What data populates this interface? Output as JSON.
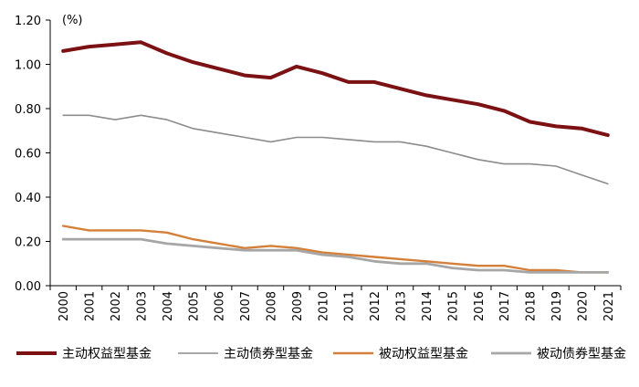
{
  "chart_data": {
    "type": "line",
    "unit": "(%)",
    "categories": [
      "2000",
      "2001",
      "2002",
      "2003",
      "2004",
      "2005",
      "2006",
      "2007",
      "2008",
      "2009",
      "2010",
      "2011",
      "2012",
      "2013",
      "2014",
      "2015",
      "2016",
      "2017",
      "2018",
      "2019",
      "2020",
      "2021"
    ],
    "ylim": [
      0,
      1.2
    ],
    "yticks": [
      "0.00",
      "0.20",
      "0.40",
      "0.60",
      "0.80",
      "1.00",
      "1.20"
    ],
    "grid": false,
    "legend_position": "bottom",
    "series": [
      {
        "name": "主动权益型基金",
        "color": "#7B1113",
        "width": 4,
        "values": [
          1.06,
          1.08,
          1.09,
          1.1,
          1.05,
          1.01,
          0.98,
          0.95,
          0.94,
          0.99,
          0.96,
          0.92,
          0.92,
          0.89,
          0.86,
          0.84,
          0.82,
          0.79,
          0.74,
          0.72,
          0.71,
          0.68
        ]
      },
      {
        "name": "主动债券型基金",
        "color": "#8C8C8C",
        "width": 1.6,
        "values": [
          0.77,
          0.77,
          0.75,
          0.77,
          0.75,
          0.71,
          0.69,
          0.67,
          0.65,
          0.67,
          0.67,
          0.66,
          0.65,
          0.65,
          0.63,
          0.6,
          0.57,
          0.55,
          0.55,
          0.54,
          0.5,
          0.46
        ]
      },
      {
        "name": "被动权益型基金",
        "color": "#D4803A",
        "width": 2.4,
        "values": [
          0.27,
          0.25,
          0.25,
          0.25,
          0.24,
          0.21,
          0.19,
          0.17,
          0.18,
          0.17,
          0.15,
          0.14,
          0.13,
          0.12,
          0.11,
          0.1,
          0.09,
          0.09,
          0.07,
          0.07,
          0.06,
          0.06
        ]
      },
      {
        "name": "被动债券型基金",
        "color": "#A6A6A6",
        "width": 2.8,
        "values": [
          0.21,
          0.21,
          0.21,
          0.21,
          0.19,
          0.18,
          0.17,
          0.16,
          0.16,
          0.16,
          0.14,
          0.13,
          0.11,
          0.1,
          0.1,
          0.08,
          0.07,
          0.07,
          0.06,
          0.06,
          0.06,
          0.06
        ]
      }
    ]
  }
}
